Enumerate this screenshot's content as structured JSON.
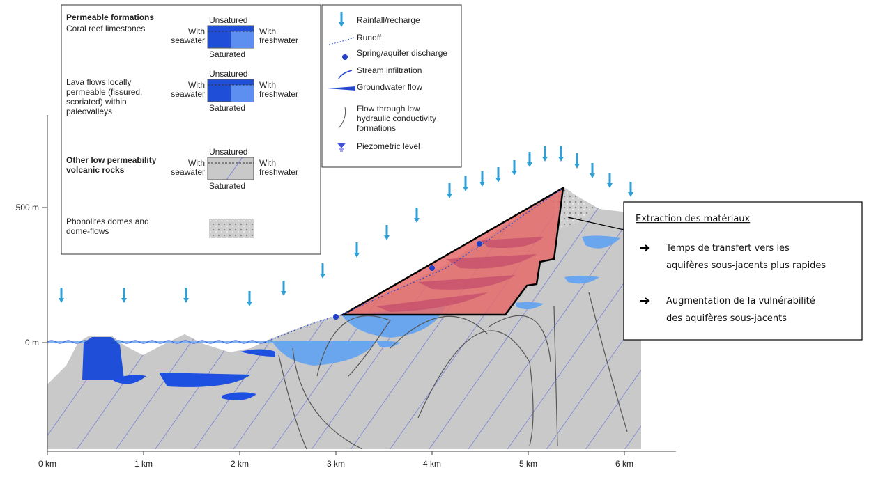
{
  "legend_formations": {
    "title": "Permeable formations",
    "items": [
      {
        "label": [
          "Coral reef limestones"
        ],
        "top": "Unsatured",
        "left": [
          "With",
          "seawater"
        ],
        "right": [
          "With",
          "freshwater"
        ],
        "bottom": "Saturated"
      },
      {
        "label": [
          "Lava flows locally",
          "permeable (fissured,",
          "scoriated) within",
          "paleovalleys"
        ],
        "top": "Unsatured",
        "left": [
          "With",
          "seawater"
        ],
        "right": [
          "With",
          "freshwater"
        ],
        "bottom": "Saturated"
      },
      {
        "label": [
          "Other low permeability",
          "volcanic rocks"
        ],
        "top": "Unsatured",
        "left": [
          "With",
          "seawater"
        ],
        "right": [
          "With",
          "freshwater"
        ],
        "bottom": "Saturated"
      },
      {
        "label": [
          "Phonolites domes and",
          "dome-flows"
        ]
      }
    ]
  },
  "legend_symbols": [
    [
      "Rainfall/recharge"
    ],
    [
      "Runoff"
    ],
    [
      "Spring/aquifer discharge"
    ],
    [
      "Stream infiltration"
    ],
    [
      "Groundwater flow"
    ],
    [
      "Flow through low",
      "hydraulic conductivity",
      "formations"
    ],
    [
      "Piezometric level"
    ]
  ],
  "axis": {
    "y_labels": [
      "500 m",
      "0 m"
    ],
    "x_labels": [
      "0 km",
      "1 km",
      "2 km",
      "3 km",
      "4 km",
      "5 km",
      "6 km"
    ]
  },
  "callout": {
    "title": "Extraction des matériaux",
    "bullets": [
      [
        "Temps de transfert vers les",
        "aquifères sous-jacents plus rapides"
      ],
      [
        "Augmentation de la vulnérabilité",
        "des aquifères sous-jacents"
      ]
    ]
  }
}
